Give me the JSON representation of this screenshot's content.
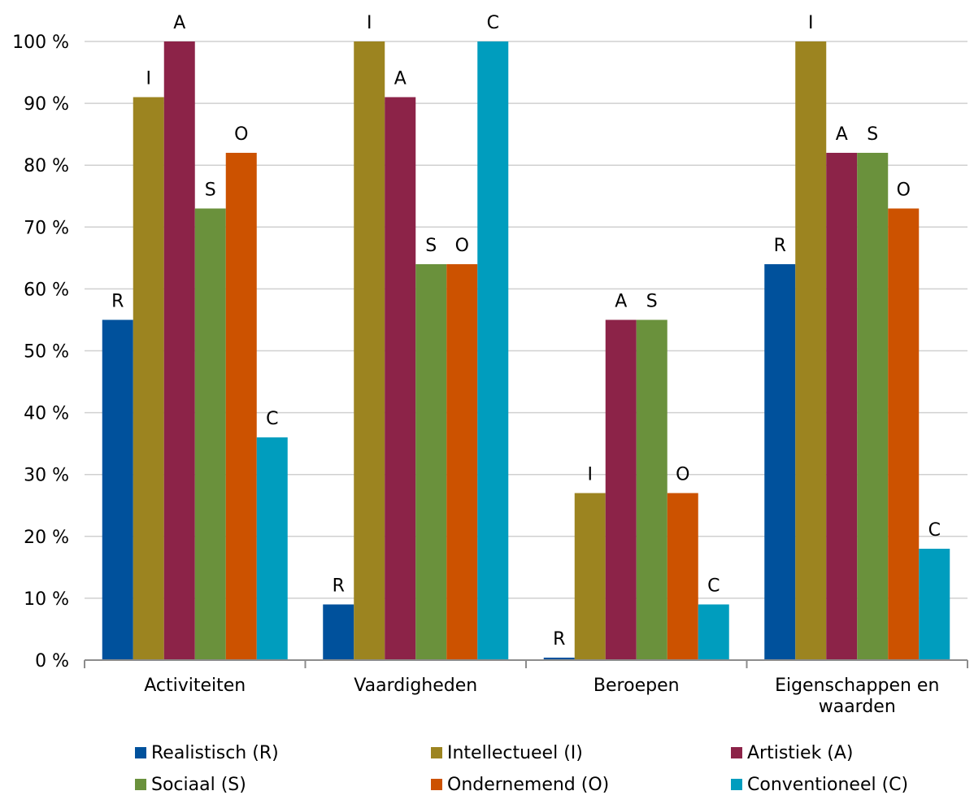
{
  "chart_data": {
    "type": "bar",
    "categories": [
      [
        "Activiteiten"
      ],
      [
        "Vaardigheden"
      ],
      [
        "Beroepen"
      ],
      [
        "Eigenschappen en",
        "waarden"
      ]
    ],
    "ylim": [
      0,
      100
    ],
    "yticks": [
      0,
      10,
      20,
      30,
      40,
      50,
      60,
      70,
      80,
      90,
      100
    ],
    "ytick_suffix": " %",
    "grid": true,
    "legend_position": "bottom",
    "series": [
      {
        "name": "Realistisch (R)",
        "label": "R",
        "color": "#00519c",
        "values": [
          55,
          9,
          0.4,
          64
        ]
      },
      {
        "name": "Intellectueel (I)",
        "label": "I",
        "color": "#9c8420",
        "values": [
          91,
          100,
          27,
          100
        ]
      },
      {
        "name": "Artistiek (A)",
        "label": "A",
        "color": "#8c2348",
        "values": [
          100,
          91,
          55,
          82
        ]
      },
      {
        "name": "Sociaal (S)",
        "label": "S",
        "color": "#6a913c",
        "values": [
          73,
          64,
          55,
          82
        ]
      },
      {
        "name": "Ondernemend (O)",
        "label": "O",
        "color": "#cc5200",
        "values": [
          82,
          64,
          27,
          73
        ]
      },
      {
        "name": "Conventioneel (C)",
        "label": "C",
        "color": "#009dbe",
        "values": [
          36,
          100,
          9,
          18
        ]
      }
    ]
  }
}
